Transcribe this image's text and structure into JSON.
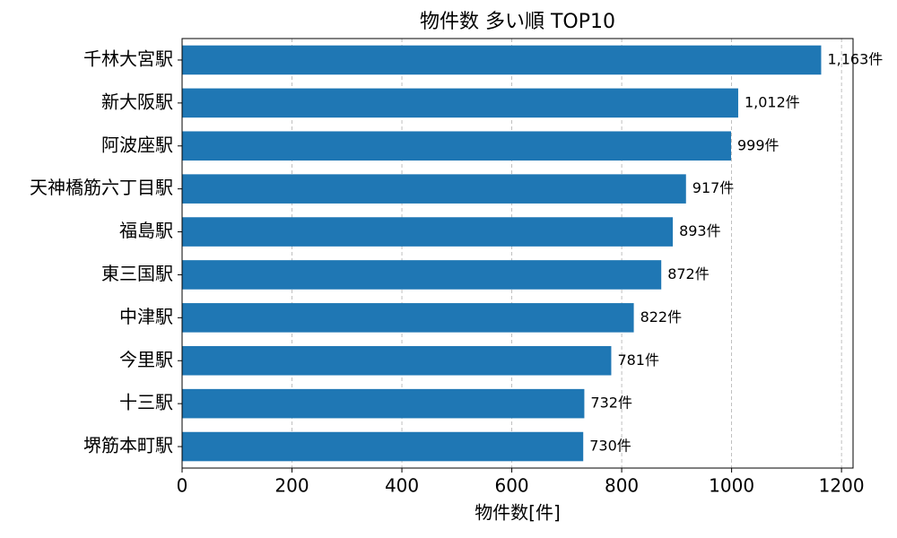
{
  "chart_data": {
    "type": "hbar",
    "title": "物件数 多い順 TOP10",
    "x_label": "物件数[件]",
    "categories": [
      "千林大宮駅",
      "新大阪駅",
      "阿波座駅",
      "天神橋筋六丁目駅",
      "福島駅",
      "東三国駅",
      "中津駅",
      "今里駅",
      "十三駅",
      "堺筋本町駅"
    ],
    "values": [
      1163,
      1012,
      999,
      917,
      893,
      872,
      822,
      781,
      732,
      730
    ],
    "value_labels": [
      "1,163件",
      "1,012件",
      "999件",
      "917件",
      "893件",
      "872件",
      "822件",
      "781件",
      "732件",
      "730件"
    ],
    "color": "#1f77b4",
    "xlim": [
      0,
      1221
    ],
    "xticks": [
      0,
      200,
      400,
      600,
      800,
      1000,
      1200
    ],
    "grid": true
  }
}
